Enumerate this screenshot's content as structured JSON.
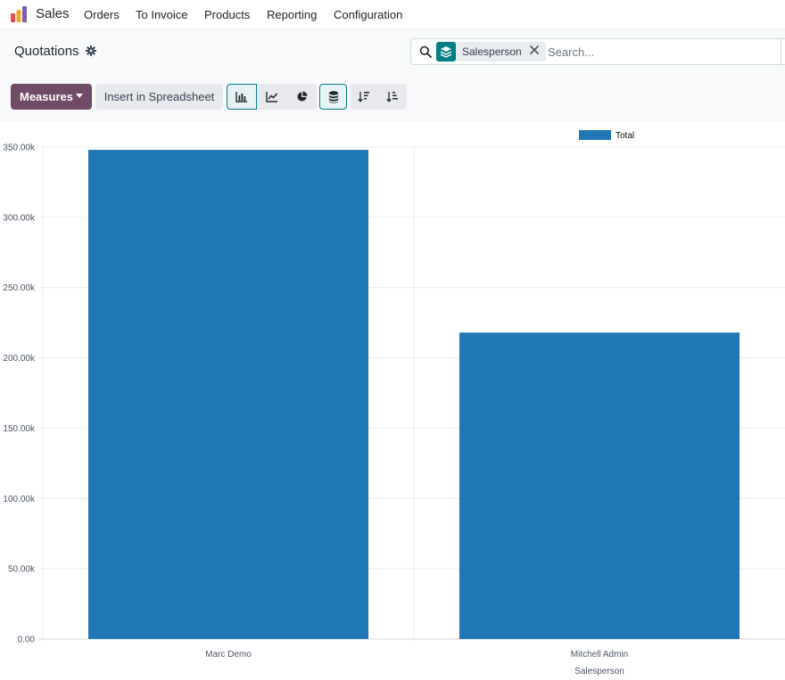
{
  "navbar": {
    "app_name": "Sales",
    "menu": [
      "Orders",
      "To Invoice",
      "Products",
      "Reporting",
      "Configuration"
    ]
  },
  "control_panel": {
    "breadcrumb": "Quotations",
    "search": {
      "facet_label": "Salesperson",
      "placeholder": "Search..."
    },
    "measures_label": "Measures",
    "spreadsheet_label": "Insert in Spreadsheet"
  },
  "colors": {
    "brand": "#714b67",
    "accent": "#017e84",
    "bar": "#1f77b4"
  },
  "chart_data": {
    "type": "bar",
    "categories": [
      "Marc Demo",
      "Mitchell Admin"
    ],
    "series": [
      {
        "name": "Total",
        "values": [
          348000,
          218000
        ]
      }
    ],
    "xlabel": "Salesperson",
    "ylabel": "",
    "ylim": [
      0,
      350000
    ],
    "yticks": [
      "0.00",
      "50.00k",
      "100.00k",
      "150.00k",
      "200.00k",
      "250.00k",
      "300.00k",
      "350.00k"
    ],
    "grid": true,
    "legend": "top-right"
  }
}
